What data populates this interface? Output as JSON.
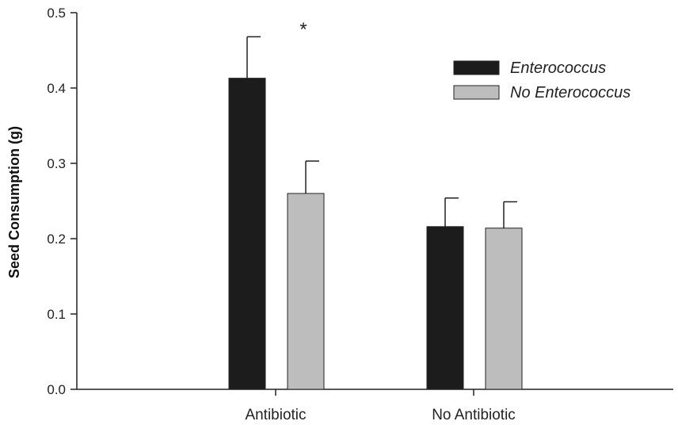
{
  "chart_data": {
    "type": "bar",
    "categories": [
      "Antibiotic",
      "No Antibiotic"
    ],
    "series": [
      {
        "name": "Enterococcus",
        "values": [
          0.413,
          0.216
        ],
        "errors": [
          0.055,
          0.038
        ],
        "color": "#1c1c1c"
      },
      {
        "name": "No Enterococcus",
        "values": [
          0.26,
          0.214
        ],
        "errors": [
          0.043,
          0.035
        ],
        "color": "#bdbdbd"
      }
    ],
    "ylabel": "Seed Consumption (g)",
    "ylim": [
      0,
      0.5
    ],
    "yticks": [
      "0.0",
      "0.1",
      "0.2",
      "0.3",
      "0.4",
      "0.5"
    ],
    "annotation": "*",
    "legend_position": "top-right",
    "grid": false
  }
}
